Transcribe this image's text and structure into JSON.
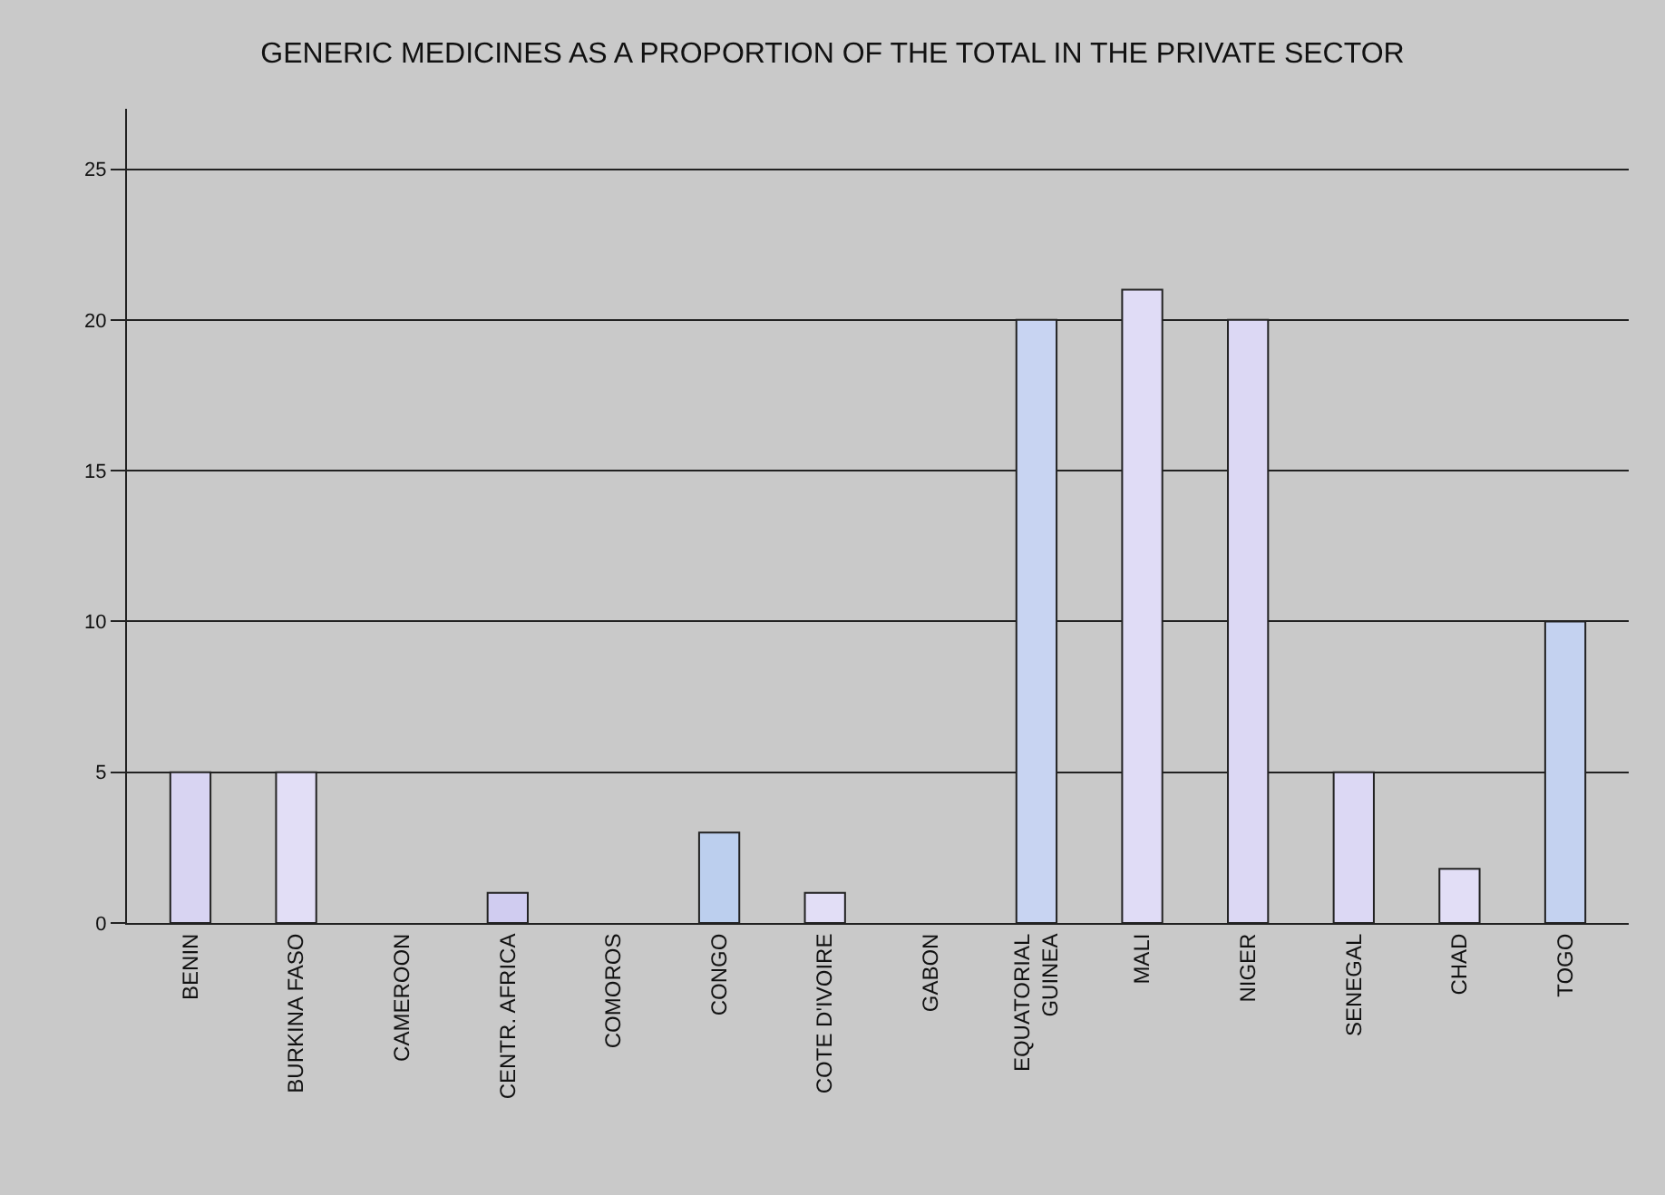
{
  "chart_data": {
    "type": "bar",
    "title": "GENERIC MEDICINES AS A PROPORTION OF THE TOTAL IN THE PRIVATE SECTOR",
    "categories": [
      "BENIN",
      "BURKINA FASO",
      "CAMEROON",
      "CENTR. AFRICA",
      "COMOROS",
      "CONGO",
      "COTE D'IVOIRE",
      "GABON",
      "EQUATORIAL\nGUINEA",
      "MALI",
      "NIGER",
      "SENEGAL",
      "CHAD",
      "TOGO"
    ],
    "values": [
      5,
      5,
      null,
      1,
      null,
      3,
      1,
      null,
      20,
      21,
      20,
      5,
      1.8,
      10
    ],
    "colors": [
      "#d8d4f2",
      "#e2def6",
      null,
      "#d0ccf0",
      null,
      "#bccfee",
      "#e2def6",
      null,
      "#c8d4f2",
      "#e0dcf6",
      "#dcd8f4",
      "#dcd8f4",
      "#e2def6",
      "#c4d2f0"
    ],
    "ylim": [
      0,
      27
    ],
    "yticks": [
      0,
      5,
      10,
      15,
      20,
      25
    ],
    "grid": "y"
  }
}
